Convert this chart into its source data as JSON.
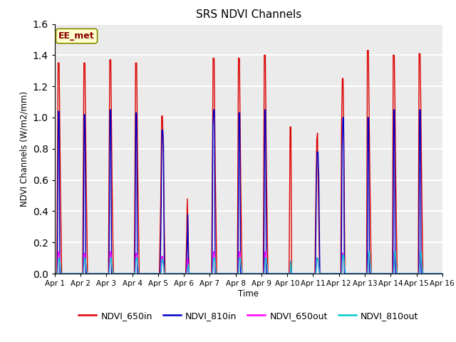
{
  "title": "SRS NDVI Channels",
  "ylabel": "NDVI Channels (W/m2/mm)",
  "xlabel": "Time",
  "ylim": [
    0,
    1.6
  ],
  "xlim": [
    0,
    15
  ],
  "plot_bg": "#ebebeb",
  "fig_bg": "#ffffff",
  "grid_color": "#ffffff",
  "grid_lw": 1.5,
  "annotation_text": "EE_met",
  "legend_entries": [
    "NDVI_650in",
    "NDVI_810in",
    "NDVI_650out",
    "NDVI_810out"
  ],
  "legend_colors": [
    "#dd0000",
    "#0000cc",
    "#ff00ff",
    "#00cccc"
  ],
  "xtick_labels": [
    "Apr 1",
    "Apr 2",
    "Apr 3",
    "Apr 4",
    "Apr 5",
    "Apr 6",
    "Apr 7",
    "Apr 8",
    "Apr 9",
    "Apr 10",
    "Apr 11",
    "Apr 12",
    "Apr 13",
    "Apr 14",
    "Apr 15",
    "Apr 16"
  ],
  "xtick_positions": [
    0,
    1,
    2,
    3,
    4,
    5,
    6,
    7,
    8,
    9,
    10,
    11,
    12,
    13,
    14,
    15
  ],
  "ytick_positions": [
    0.0,
    0.2,
    0.4,
    0.6,
    0.8,
    1.0,
    1.2,
    1.4,
    1.6
  ],
  "series": {
    "NDVI_650in": {
      "color": "#dd0000",
      "lw": 1.0,
      "data": [
        [
          0.0,
          0.0
        ],
        [
          0.08,
          0.0
        ],
        [
          0.13,
          1.35
        ],
        [
          0.17,
          1.35
        ],
        [
          0.19,
          1.05
        ],
        [
          0.22,
          0.58
        ],
        [
          0.27,
          0.0
        ],
        [
          1.0,
          0.0
        ],
        [
          1.08,
          0.0
        ],
        [
          1.13,
          1.35
        ],
        [
          1.17,
          1.35
        ],
        [
          1.19,
          1.0
        ],
        [
          1.22,
          0.58
        ],
        [
          1.27,
          0.0
        ],
        [
          2.0,
          0.0
        ],
        [
          2.08,
          0.0
        ],
        [
          2.13,
          1.37
        ],
        [
          2.17,
          1.37
        ],
        [
          2.19,
          1.05
        ],
        [
          2.22,
          0.58
        ],
        [
          2.27,
          0.0
        ],
        [
          3.0,
          0.0
        ],
        [
          3.08,
          0.0
        ],
        [
          3.13,
          1.35
        ],
        [
          3.17,
          1.35
        ],
        [
          3.19,
          1.03
        ],
        [
          3.22,
          0.58
        ],
        [
          3.27,
          0.0
        ],
        [
          4.0,
          0.0
        ],
        [
          4.05,
          0.0
        ],
        [
          4.1,
          0.45
        ],
        [
          4.14,
          1.01
        ],
        [
          4.17,
          1.01
        ],
        [
          4.2,
          0.82
        ],
        [
          4.23,
          0.4
        ],
        [
          4.27,
          0.0
        ],
        [
          5.0,
          0.0
        ],
        [
          5.07,
          0.0
        ],
        [
          5.1,
          0.19
        ],
        [
          5.13,
          0.48
        ],
        [
          5.16,
          0.28
        ],
        [
          5.2,
          0.0
        ],
        [
          6.0,
          0.0
        ],
        [
          6.07,
          0.0
        ],
        [
          6.1,
          0.65
        ],
        [
          6.13,
          1.38
        ],
        [
          6.17,
          1.38
        ],
        [
          6.19,
          1.05
        ],
        [
          6.22,
          0.58
        ],
        [
          6.27,
          0.0
        ],
        [
          7.0,
          0.0
        ],
        [
          7.07,
          0.0
        ],
        [
          7.11,
          1.38
        ],
        [
          7.15,
          1.38
        ],
        [
          7.17,
          1.03
        ],
        [
          7.2,
          0.58
        ],
        [
          7.25,
          0.0
        ],
        [
          8.0,
          0.0
        ],
        [
          8.07,
          0.0
        ],
        [
          8.11,
          1.4
        ],
        [
          8.15,
          1.4
        ],
        [
          8.17,
          1.05
        ],
        [
          8.2,
          0.58
        ],
        [
          8.25,
          0.0
        ],
        [
          9.0,
          0.0
        ],
        [
          9.07,
          0.0
        ],
        [
          9.11,
          0.94
        ],
        [
          9.14,
          0.94
        ],
        [
          9.17,
          0.0
        ],
        [
          10.0,
          0.0
        ],
        [
          10.07,
          0.0
        ],
        [
          10.1,
          0.42
        ],
        [
          10.14,
          0.86
        ],
        [
          10.17,
          0.9
        ],
        [
          10.2,
          0.54
        ],
        [
          10.25,
          0.0
        ],
        [
          11.0,
          0.0
        ],
        [
          11.07,
          0.0
        ],
        [
          11.1,
          0.95
        ],
        [
          11.13,
          1.25
        ],
        [
          11.16,
          1.25
        ],
        [
          11.19,
          0.82
        ],
        [
          11.23,
          0.0
        ],
        [
          12.0,
          0.0
        ],
        [
          12.07,
          0.0
        ],
        [
          12.1,
          1.43
        ],
        [
          12.14,
          1.43
        ],
        [
          12.17,
          0.99
        ],
        [
          12.2,
          0.58
        ],
        [
          12.25,
          0.0
        ],
        [
          13.0,
          0.0
        ],
        [
          13.07,
          0.0
        ],
        [
          13.1,
          1.4
        ],
        [
          13.14,
          1.4
        ],
        [
          13.17,
          1.05
        ],
        [
          13.2,
          0.58
        ],
        [
          13.25,
          0.0
        ],
        [
          14.0,
          0.0
        ],
        [
          14.07,
          0.0
        ],
        [
          14.1,
          1.41
        ],
        [
          14.14,
          1.41
        ],
        [
          14.17,
          1.05
        ],
        [
          14.2,
          0.58
        ],
        [
          14.25,
          0.0
        ],
        [
          15.0,
          0.0
        ]
      ]
    },
    "NDVI_810in": {
      "color": "#0000cc",
      "lw": 1.0,
      "data": [
        [
          0.0,
          0.0
        ],
        [
          0.1,
          0.0
        ],
        [
          0.14,
          1.04
        ],
        [
          0.17,
          1.04
        ],
        [
          0.2,
          0.0
        ],
        [
          1.0,
          0.0
        ],
        [
          1.1,
          0.0
        ],
        [
          1.14,
          1.02
        ],
        [
          1.17,
          1.02
        ],
        [
          1.2,
          0.0
        ],
        [
          2.0,
          0.0
        ],
        [
          2.1,
          0.0
        ],
        [
          2.14,
          1.05
        ],
        [
          2.17,
          1.05
        ],
        [
          2.2,
          0.0
        ],
        [
          3.0,
          0.0
        ],
        [
          3.1,
          0.0
        ],
        [
          3.14,
          1.03
        ],
        [
          3.17,
          1.03
        ],
        [
          3.2,
          0.0
        ],
        [
          4.0,
          0.0
        ],
        [
          4.08,
          0.0
        ],
        [
          4.12,
          0.4
        ],
        [
          4.15,
          0.92
        ],
        [
          4.18,
          0.92
        ],
        [
          4.21,
          0.83
        ],
        [
          4.24,
          0.0
        ],
        [
          5.0,
          0.0
        ],
        [
          5.09,
          0.0
        ],
        [
          5.12,
          0.15
        ],
        [
          5.15,
          0.38
        ],
        [
          5.18,
          0.0
        ],
        [
          6.0,
          0.0
        ],
        [
          6.09,
          0.0
        ],
        [
          6.12,
          0.94
        ],
        [
          6.15,
          1.05
        ],
        [
          6.18,
          1.05
        ],
        [
          6.21,
          0.0
        ],
        [
          7.0,
          0.0
        ],
        [
          7.09,
          0.0
        ],
        [
          7.13,
          1.03
        ],
        [
          7.16,
          1.03
        ],
        [
          7.19,
          0.0
        ],
        [
          8.0,
          0.0
        ],
        [
          8.09,
          0.0
        ],
        [
          8.13,
          1.05
        ],
        [
          8.16,
          1.05
        ],
        [
          8.19,
          0.0
        ],
        [
          9.0,
          0.0
        ],
        [
          9.09,
          0.0
        ],
        [
          9.12,
          0.0
        ],
        [
          10.0,
          0.0
        ],
        [
          10.09,
          0.0
        ],
        [
          10.13,
          0.63
        ],
        [
          10.16,
          0.78
        ],
        [
          10.19,
          0.78
        ],
        [
          10.22,
          0.62
        ],
        [
          10.26,
          0.0
        ],
        [
          11.0,
          0.0
        ],
        [
          11.09,
          0.0
        ],
        [
          11.12,
          0.79
        ],
        [
          11.15,
          1.0
        ],
        [
          11.18,
          1.0
        ],
        [
          11.21,
          0.0
        ],
        [
          12.0,
          0.0
        ],
        [
          12.09,
          0.0
        ],
        [
          12.12,
          1.0
        ],
        [
          12.15,
          1.0
        ],
        [
          12.18,
          0.0
        ],
        [
          13.0,
          0.0
        ],
        [
          13.09,
          0.0
        ],
        [
          13.12,
          1.05
        ],
        [
          13.15,
          1.05
        ],
        [
          13.18,
          0.0
        ],
        [
          14.0,
          0.0
        ],
        [
          14.09,
          0.0
        ],
        [
          14.12,
          1.05
        ],
        [
          14.15,
          1.05
        ],
        [
          14.18,
          0.0
        ],
        [
          15.0,
          0.0
        ]
      ]
    },
    "NDVI_650out": {
      "color": "#ff00ff",
      "lw": 1.0,
      "data": [
        [
          0.0,
          0.0
        ],
        [
          0.1,
          0.0
        ],
        [
          0.14,
          0.14
        ],
        [
          0.17,
          0.14
        ],
        [
          0.2,
          0.08
        ],
        [
          0.24,
          0.0
        ],
        [
          1.0,
          0.0
        ],
        [
          1.1,
          0.0
        ],
        [
          1.14,
          0.13
        ],
        [
          1.17,
          0.13
        ],
        [
          1.2,
          0.07
        ],
        [
          1.24,
          0.0
        ],
        [
          2.0,
          0.0
        ],
        [
          2.1,
          0.0
        ],
        [
          2.14,
          0.14
        ],
        [
          2.17,
          0.14
        ],
        [
          2.2,
          0.07
        ],
        [
          2.24,
          0.0
        ],
        [
          3.0,
          0.0
        ],
        [
          3.1,
          0.0
        ],
        [
          3.14,
          0.13
        ],
        [
          3.17,
          0.13
        ],
        [
          3.2,
          0.07
        ],
        [
          3.24,
          0.0
        ],
        [
          4.0,
          0.0
        ],
        [
          4.1,
          0.0
        ],
        [
          4.14,
          0.11
        ],
        [
          4.17,
          0.11
        ],
        [
          4.2,
          0.07
        ],
        [
          4.24,
          0.0
        ],
        [
          5.0,
          0.0
        ],
        [
          5.1,
          0.0
        ],
        [
          5.14,
          0.1
        ],
        [
          5.18,
          0.0
        ],
        [
          6.0,
          0.0
        ],
        [
          6.1,
          0.0
        ],
        [
          6.14,
          0.14
        ],
        [
          6.17,
          0.14
        ],
        [
          6.2,
          0.08
        ],
        [
          6.24,
          0.0
        ],
        [
          7.0,
          0.0
        ],
        [
          7.1,
          0.0
        ],
        [
          7.14,
          0.14
        ],
        [
          7.17,
          0.14
        ],
        [
          7.2,
          0.07
        ],
        [
          7.24,
          0.0
        ],
        [
          8.0,
          0.0
        ],
        [
          8.1,
          0.0
        ],
        [
          8.14,
          0.14
        ],
        [
          8.17,
          0.14
        ],
        [
          8.2,
          0.07
        ],
        [
          8.24,
          0.0
        ],
        [
          9.0,
          0.0
        ],
        [
          9.1,
          0.0
        ],
        [
          9.13,
          0.08
        ],
        [
          9.16,
          0.0
        ],
        [
          10.0,
          0.0
        ],
        [
          10.1,
          0.0
        ],
        [
          10.14,
          0.1
        ],
        [
          10.17,
          0.1
        ],
        [
          10.2,
          0.07
        ],
        [
          10.24,
          0.0
        ],
        [
          11.0,
          0.0
        ],
        [
          11.1,
          0.0
        ],
        [
          11.14,
          0.13
        ],
        [
          11.17,
          0.13
        ],
        [
          11.2,
          0.07
        ],
        [
          11.24,
          0.0
        ],
        [
          12.0,
          0.0
        ],
        [
          12.1,
          0.0
        ],
        [
          12.14,
          0.14
        ],
        [
          12.17,
          0.14
        ],
        [
          12.2,
          0.07
        ],
        [
          12.24,
          0.0
        ],
        [
          13.0,
          0.0
        ],
        [
          13.1,
          0.0
        ],
        [
          13.14,
          0.14
        ],
        [
          13.17,
          0.14
        ],
        [
          13.2,
          0.07
        ],
        [
          13.24,
          0.0
        ],
        [
          14.0,
          0.0
        ],
        [
          14.1,
          0.0
        ],
        [
          14.14,
          0.14
        ],
        [
          14.17,
          0.14
        ],
        [
          14.2,
          0.07
        ],
        [
          14.24,
          0.0
        ],
        [
          15.0,
          0.0
        ]
      ]
    },
    "NDVI_810out": {
      "color": "#00cccc",
      "lw": 1.0,
      "data": [
        [
          0.0,
          0.0
        ],
        [
          0.11,
          0.0
        ],
        [
          0.15,
          0.1
        ],
        [
          0.18,
          0.1
        ],
        [
          0.21,
          0.06
        ],
        [
          0.25,
          0.0
        ],
        [
          1.0,
          0.0
        ],
        [
          1.11,
          0.0
        ],
        [
          1.15,
          0.1
        ],
        [
          1.18,
          0.1
        ],
        [
          1.21,
          0.06
        ],
        [
          1.25,
          0.0
        ],
        [
          2.0,
          0.0
        ],
        [
          2.11,
          0.0
        ],
        [
          2.15,
          0.1
        ],
        [
          2.18,
          0.1
        ],
        [
          2.21,
          0.06
        ],
        [
          2.25,
          0.0
        ],
        [
          3.0,
          0.0
        ],
        [
          3.11,
          0.0
        ],
        [
          3.15,
          0.1
        ],
        [
          3.18,
          0.1
        ],
        [
          3.21,
          0.06
        ],
        [
          3.25,
          0.0
        ],
        [
          4.0,
          0.0
        ],
        [
          4.11,
          0.0
        ],
        [
          4.15,
          0.09
        ],
        [
          4.18,
          0.09
        ],
        [
          4.21,
          0.06
        ],
        [
          4.25,
          0.0
        ],
        [
          5.0,
          0.0
        ],
        [
          5.11,
          0.0
        ],
        [
          5.14,
          0.03
        ],
        [
          5.17,
          0.06
        ],
        [
          5.21,
          0.0
        ],
        [
          6.0,
          0.0
        ],
        [
          6.11,
          0.0
        ],
        [
          6.15,
          0.1
        ],
        [
          6.18,
          0.1
        ],
        [
          6.21,
          0.06
        ],
        [
          6.25,
          0.0
        ],
        [
          7.0,
          0.0
        ],
        [
          7.11,
          0.0
        ],
        [
          7.15,
          0.1
        ],
        [
          7.18,
          0.1
        ],
        [
          7.21,
          0.06
        ],
        [
          7.25,
          0.0
        ],
        [
          8.0,
          0.0
        ],
        [
          8.11,
          0.0
        ],
        [
          8.15,
          0.1
        ],
        [
          8.18,
          0.1
        ],
        [
          8.21,
          0.06
        ],
        [
          8.25,
          0.0
        ],
        [
          9.0,
          0.0
        ],
        [
          9.11,
          0.0
        ],
        [
          9.14,
          0.08
        ],
        [
          9.17,
          0.0
        ],
        [
          10.0,
          0.0
        ],
        [
          10.11,
          0.0
        ],
        [
          10.15,
          0.1
        ],
        [
          10.18,
          0.1
        ],
        [
          10.21,
          0.06
        ],
        [
          10.25,
          0.0
        ],
        [
          11.0,
          0.0
        ],
        [
          11.11,
          0.0
        ],
        [
          11.15,
          0.12
        ],
        [
          11.18,
          0.12
        ],
        [
          11.21,
          0.06
        ],
        [
          11.25,
          0.0
        ],
        [
          12.0,
          0.0
        ],
        [
          12.11,
          0.0
        ],
        [
          12.15,
          0.14
        ],
        [
          12.18,
          0.14
        ],
        [
          12.21,
          0.06
        ],
        [
          12.25,
          0.0
        ],
        [
          13.0,
          0.0
        ],
        [
          13.11,
          0.0
        ],
        [
          13.15,
          0.14
        ],
        [
          13.18,
          0.14
        ],
        [
          13.21,
          0.06
        ],
        [
          13.25,
          0.0
        ],
        [
          14.0,
          0.0
        ],
        [
          14.11,
          0.0
        ],
        [
          14.15,
          0.14
        ],
        [
          14.18,
          0.14
        ],
        [
          14.21,
          0.06
        ],
        [
          14.25,
          0.0
        ],
        [
          15.0,
          0.0
        ]
      ]
    }
  }
}
